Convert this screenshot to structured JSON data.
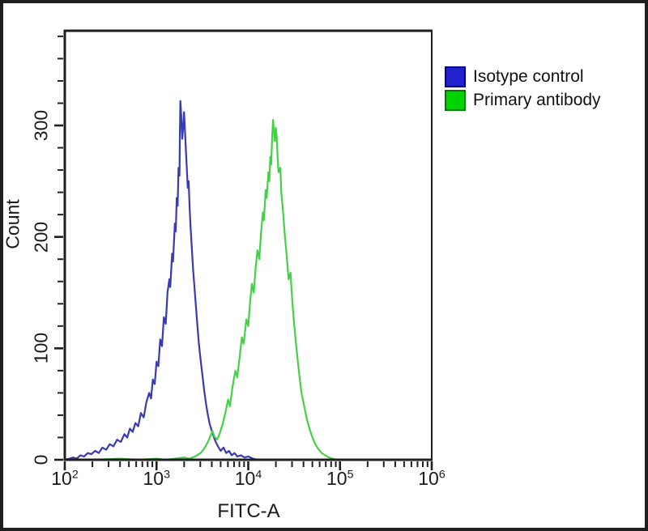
{
  "axis_color": "#1f1f1f",
  "legend": {
    "items": [
      {
        "label": "Isotype control",
        "swatch_fill": "#2222cc",
        "swatch_border": "#000099"
      },
      {
        "label": "Primary antibody",
        "swatch_fill": "#00d400",
        "swatch_border": "#007700"
      }
    ]
  },
  "chart_data": {
    "type": "line",
    "subtype": "flow-cytometry-histogram",
    "title": "",
    "xlabel": "FITC-A",
    "ylabel": "Count",
    "x_scale": "log10",
    "xlim_log10": [
      2,
      6
    ],
    "ylim": [
      0,
      385
    ],
    "y_major_step": 100,
    "y_minor_step": 20,
    "grid": false,
    "legend_position": "outside-top-right",
    "xticks": [
      {
        "base": "10",
        "exp": "2",
        "log10": 2
      },
      {
        "base": "10",
        "exp": "3",
        "log10": 3
      },
      {
        "base": "10",
        "exp": "4",
        "log10": 4
      },
      {
        "base": "10",
        "exp": "5",
        "log10": 5
      },
      {
        "base": "10",
        "exp": "6",
        "log10": 6
      }
    ],
    "yticks": [
      {
        "label": "0",
        "value": 0
      },
      {
        "label": "100",
        "value": 100
      },
      {
        "label": "200",
        "value": 200
      },
      {
        "label": "300",
        "value": 300
      }
    ],
    "series": [
      {
        "name": "Isotype control",
        "color": "#3a3ab2",
        "peak_x_log10": 3.26,
        "peak_count": 322,
        "points": [
          [
            2.0,
            0
          ],
          [
            2.05,
            1
          ],
          [
            2.09,
            2
          ],
          [
            2.13,
            1
          ],
          [
            2.17,
            4
          ],
          [
            2.21,
            3
          ],
          [
            2.25,
            6
          ],
          [
            2.29,
            5
          ],
          [
            2.33,
            8
          ],
          [
            2.37,
            6
          ],
          [
            2.41,
            11
          ],
          [
            2.45,
            9
          ],
          [
            2.49,
            14
          ],
          [
            2.53,
            12
          ],
          [
            2.57,
            18
          ],
          [
            2.61,
            16
          ],
          [
            2.65,
            23
          ],
          [
            2.68,
            20
          ],
          [
            2.71,
            28
          ],
          [
            2.74,
            25
          ],
          [
            2.77,
            33
          ],
          [
            2.8,
            30
          ],
          [
            2.83,
            42
          ],
          [
            2.86,
            38
          ],
          [
            2.89,
            52
          ],
          [
            2.92,
            60
          ],
          [
            2.94,
            55
          ],
          [
            2.96,
            72
          ],
          [
            2.98,
            68
          ],
          [
            3.0,
            88
          ],
          [
            3.02,
            84
          ],
          [
            3.04,
            108
          ],
          [
            3.06,
            102
          ],
          [
            3.08,
            128
          ],
          [
            3.1,
            122
          ],
          [
            3.12,
            150
          ],
          [
            3.14,
            162
          ],
          [
            3.15,
            155
          ],
          [
            3.17,
            185
          ],
          [
            3.18,
            178
          ],
          [
            3.2,
            212
          ],
          [
            3.21,
            205
          ],
          [
            3.22,
            235
          ],
          [
            3.23,
            228
          ],
          [
            3.24,
            262
          ],
          [
            3.25,
            255
          ],
          [
            3.255,
            295
          ],
          [
            3.26,
            322
          ],
          [
            3.27,
            308
          ],
          [
            3.28,
            288
          ],
          [
            3.29,
            298
          ],
          [
            3.3,
            312
          ],
          [
            3.31,
            295
          ],
          [
            3.32,
            278
          ],
          [
            3.33,
            262
          ],
          [
            3.34,
            244
          ],
          [
            3.35,
            250
          ],
          [
            3.36,
            228
          ],
          [
            3.37,
            210
          ],
          [
            3.38,
            196
          ],
          [
            3.4,
            170
          ],
          [
            3.42,
            148
          ],
          [
            3.44,
            126
          ],
          [
            3.46,
            106
          ],
          [
            3.48,
            90
          ],
          [
            3.5,
            76
          ],
          [
            3.52,
            62
          ],
          [
            3.54,
            50
          ],
          [
            3.56,
            40
          ],
          [
            3.58,
            32
          ],
          [
            3.61,
            24
          ],
          [
            3.64,
            17
          ],
          [
            3.67,
            12
          ],
          [
            3.7,
            8
          ],
          [
            3.73,
            11
          ],
          [
            3.76,
            6
          ],
          [
            3.79,
            8
          ],
          [
            3.82,
            4
          ],
          [
            3.85,
            6
          ],
          [
            3.88,
            3
          ],
          [
            3.92,
            4
          ],
          [
            3.96,
            2
          ],
          [
            4.0,
            3
          ],
          [
            4.05,
            1
          ],
          [
            4.1,
            0
          ],
          [
            4.3,
            0
          ]
        ]
      },
      {
        "name": "Primary antibody",
        "color": "#45d145",
        "peak_x_log10": 4.27,
        "peak_count": 305,
        "points": [
          [
            2.0,
            0
          ],
          [
            2.3,
            0
          ],
          [
            2.6,
            1
          ],
          [
            2.8,
            0
          ],
          [
            3.0,
            1
          ],
          [
            3.1,
            0
          ],
          [
            3.2,
            1
          ],
          [
            3.3,
            2
          ],
          [
            3.36,
            1
          ],
          [
            3.42,
            3
          ],
          [
            3.48,
            6
          ],
          [
            3.52,
            10
          ],
          [
            3.56,
            16
          ],
          [
            3.59,
            22
          ],
          [
            3.61,
            26
          ],
          [
            3.63,
            21
          ],
          [
            3.66,
            18
          ],
          [
            3.69,
            24
          ],
          [
            3.72,
            32
          ],
          [
            3.75,
            42
          ],
          [
            3.78,
            54
          ],
          [
            3.8,
            48
          ],
          [
            3.83,
            66
          ],
          [
            3.86,
            80
          ],
          [
            3.88,
            74
          ],
          [
            3.91,
            95
          ],
          [
            3.93,
            110
          ],
          [
            3.95,
            104
          ],
          [
            3.98,
            126
          ],
          [
            4.0,
            120
          ],
          [
            4.02,
            142
          ],
          [
            4.04,
            158
          ],
          [
            4.06,
            150
          ],
          [
            4.08,
            172
          ],
          [
            4.1,
            188
          ],
          [
            4.12,
            180
          ],
          [
            4.14,
            205
          ],
          [
            4.16,
            222
          ],
          [
            4.17,
            215
          ],
          [
            4.19,
            242
          ],
          [
            4.2,
            235
          ],
          [
            4.22,
            258
          ],
          [
            4.23,
            250
          ],
          [
            4.24,
            272
          ],
          [
            4.25,
            265
          ],
          [
            4.26,
            288
          ],
          [
            4.27,
            305
          ],
          [
            4.28,
            295
          ],
          [
            4.29,
            286
          ],
          [
            4.3,
            298
          ],
          [
            4.31,
            290
          ],
          [
            4.32,
            272
          ],
          [
            4.33,
            258
          ],
          [
            4.35,
            262
          ],
          [
            4.36,
            240
          ],
          [
            4.38,
            222
          ],
          [
            4.4,
            200
          ],
          [
            4.42,
            182
          ],
          [
            4.44,
            162
          ],
          [
            4.46,
            168
          ],
          [
            4.48,
            142
          ],
          [
            4.5,
            122
          ],
          [
            4.52,
            104
          ],
          [
            4.54,
            88
          ],
          [
            4.56,
            74
          ],
          [
            4.58,
            60
          ],
          [
            4.61,
            48
          ],
          [
            4.64,
            36
          ],
          [
            4.67,
            27
          ],
          [
            4.7,
            20
          ],
          [
            4.73,
            14
          ],
          [
            4.76,
            10
          ],
          [
            4.8,
            6
          ],
          [
            4.84,
            4
          ],
          [
            4.88,
            2
          ],
          [
            4.92,
            1
          ],
          [
            4.97,
            0
          ],
          [
            5.02,
            0
          ]
        ]
      }
    ]
  }
}
